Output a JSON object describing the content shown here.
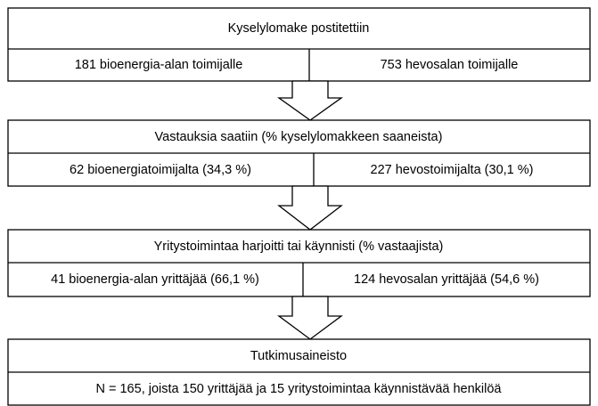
{
  "steps": [
    {
      "title": "Kyselylomake postitettiin",
      "cells": [
        "181 bioenergia-alan toimijalle",
        "753 hevosalan toimijalle"
      ]
    },
    {
      "title": "Vastauksia saatiin (% kyselylomakkeen saaneista)",
      "cells": [
        "62 bioenergiatoimijalta (34,3 %)",
        "227 hevostoimijalta (30,1 %)"
      ]
    },
    {
      "title": "Yritystoimintaa harjoitti tai käynnisti (% vastaajista)",
      "cells": [
        "41 bioenergia-alan yrittäjää (66,1 %)",
        "124 hevosalan yrittäjää (54,6 %)"
      ]
    },
    {
      "title": "Tutkimusaineisto",
      "cells": [
        "N = 165, joista 150 yrittäjää ja 15 yritystoimintaa käynnistävää henkilöä"
      ]
    }
  ]
}
